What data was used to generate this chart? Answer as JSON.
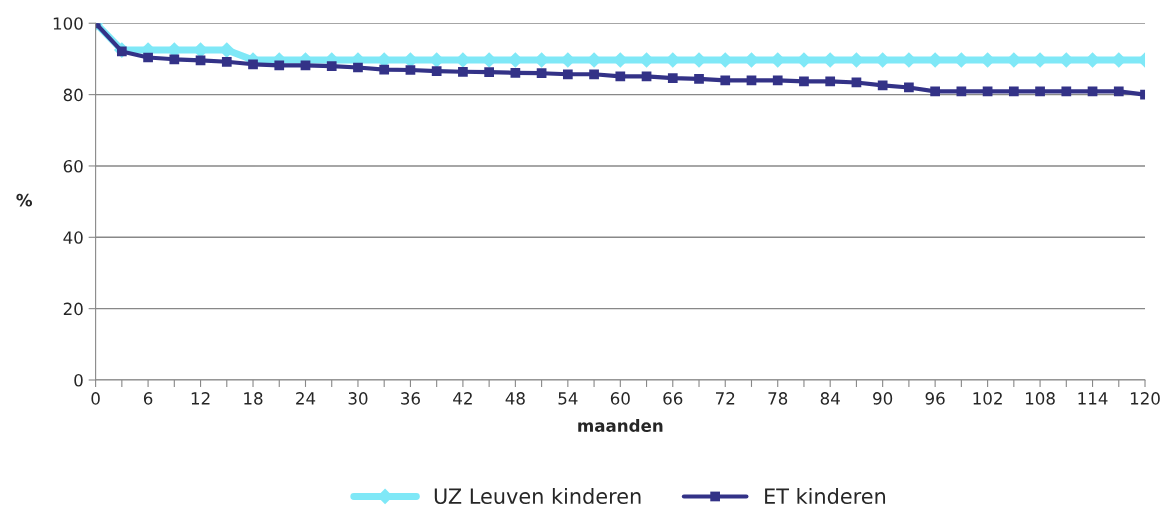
{
  "chart_data": {
    "type": "line",
    "xlabel": "maanden",
    "ylabel": "%",
    "x": [
      0,
      3,
      6,
      9,
      12,
      15,
      18,
      21,
      24,
      27,
      30,
      33,
      36,
      39,
      42,
      45,
      48,
      51,
      54,
      57,
      60,
      63,
      66,
      69,
      72,
      75,
      78,
      81,
      84,
      87,
      90,
      93,
      96,
      99,
      102,
      105,
      108,
      111,
      114,
      117,
      120
    ],
    "xlim": [
      0,
      120
    ],
    "xticks": [
      0,
      {
        "value": 3,
        "label": null
      },
      6,
      {
        "value": 9,
        "label": null
      },
      12,
      {
        "value": 15,
        "label": null
      },
      18,
      {
        "value": 21,
        "label": null
      },
      24,
      {
        "value": 27,
        "label": null
      },
      30,
      {
        "value": 33,
        "label": null
      },
      36,
      {
        "value": 39,
        "label": null
      },
      42,
      {
        "value": 45,
        "label": null
      },
      48,
      {
        "value": 51,
        "label": null
      },
      54,
      {
        "value": 57,
        "label": null
      },
      60,
      {
        "value": 63,
        "label": null
      },
      66,
      {
        "value": 69,
        "label": null
      },
      72,
      {
        "value": 75,
        "label": null
      },
      78,
      {
        "value": 81,
        "label": null
      },
      84,
      {
        "value": 87,
        "label": null
      },
      90,
      {
        "value": 93,
        "label": null
      },
      96,
      {
        "value": 99,
        "label": null
      },
      102,
      {
        "value": 105,
        "label": null
      },
      108,
      {
        "value": 111,
        "label": null
      },
      114,
      {
        "value": 117,
        "label": null
      },
      120
    ],
    "ylim": [
      0,
      100
    ],
    "yticks": [
      0,
      20,
      40,
      60,
      80,
      100
    ],
    "grid": "y",
    "legend": "bottom",
    "series": [
      {
        "name": "UZ Leuven kinderen",
        "color": "#7fe8f7",
        "marker": "diamond",
        "values": [
          100,
          92.5,
          92.5,
          92.5,
          92.5,
          92.5,
          89.7,
          89.7,
          89.7,
          89.7,
          89.7,
          89.7,
          89.7,
          89.7,
          89.7,
          89.7,
          89.7,
          89.7,
          89.7,
          89.7,
          89.7,
          89.7,
          89.7,
          89.7,
          89.7,
          89.7,
          89.7,
          89.7,
          89.7,
          89.7,
          89.7,
          89.7,
          89.7,
          89.7,
          89.7,
          89.7,
          89.7,
          89.7,
          89.7,
          89.7,
          89.7
        ]
      },
      {
        "name": "ET kinderen",
        "color": "#333287",
        "marker": "square",
        "values": [
          100,
          92.1,
          90.4,
          89.9,
          89.6,
          89.2,
          88.5,
          88.2,
          88.2,
          88.0,
          87.6,
          87.0,
          86.9,
          86.6,
          86.4,
          86.3,
          86.1,
          86.0,
          85.7,
          85.7,
          85.1,
          85.1,
          84.6,
          84.4,
          84.0,
          84.0,
          84.0,
          83.7,
          83.7,
          83.4,
          82.6,
          82.0,
          80.9,
          80.9,
          80.9,
          80.9,
          80.9,
          80.9,
          80.9,
          80.9,
          80.0
        ]
      }
    ]
  }
}
